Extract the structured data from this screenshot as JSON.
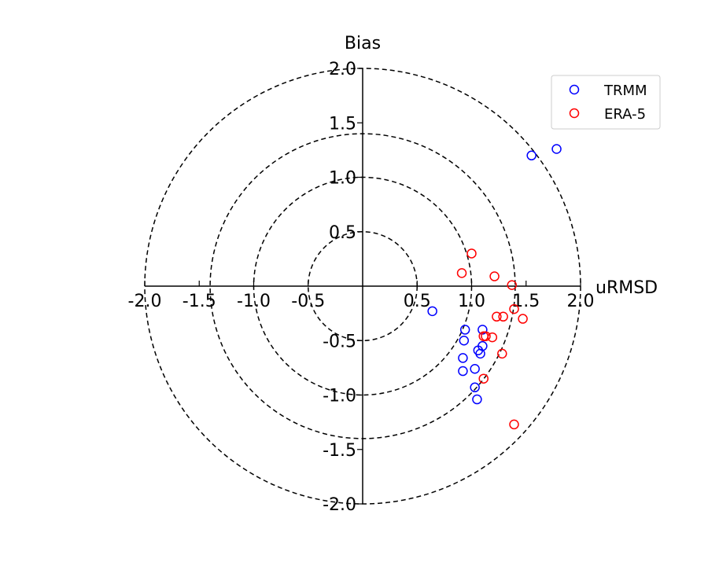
{
  "chart_data": {
    "type": "scatter",
    "subtype": "target-diagram",
    "xlabel": "uRMSD",
    "ylabel": "Bias",
    "xlim": [
      -2.0,
      2.0
    ],
    "ylim": [
      -2.0,
      2.0
    ],
    "x_ticks": [
      "-2.0",
      "-1.5",
      "-1.0",
      "-0.5",
      "0.5",
      "1.0",
      "1.5",
      "2.0"
    ],
    "y_ticks": [
      "2.0",
      "1.5",
      "1.0",
      "0.5",
      "-0.5",
      "-1.0",
      "-1.5",
      "-2.0"
    ],
    "circle_radii": [
      0.5,
      1.0,
      1.4,
      2.0
    ],
    "legend_position": "top-right",
    "series": [
      {
        "name": "TRMM",
        "color": "#0000ff",
        "marker": "open-circle",
        "points": [
          [
            1.55,
            1.2
          ],
          [
            1.78,
            1.26
          ],
          [
            0.64,
            -0.23
          ],
          [
            0.94,
            -0.4
          ],
          [
            0.93,
            -0.5
          ],
          [
            1.1,
            -0.4
          ],
          [
            1.1,
            -0.55
          ],
          [
            1.06,
            -0.59
          ],
          [
            1.08,
            -0.62
          ],
          [
            0.92,
            -0.66
          ],
          [
            0.92,
            -0.78
          ],
          [
            1.03,
            -0.76
          ],
          [
            1.03,
            -0.93
          ],
          [
            1.05,
            -1.04
          ]
        ]
      },
      {
        "name": "ERA-5",
        "color": "#ff0000",
        "marker": "open-circle",
        "points": [
          [
            1.0,
            0.3
          ],
          [
            0.91,
            0.12
          ],
          [
            1.21,
            0.09
          ],
          [
            1.37,
            0.01
          ],
          [
            1.39,
            -0.21
          ],
          [
            1.47,
            -0.3
          ],
          [
            1.23,
            -0.28
          ],
          [
            1.29,
            -0.28
          ],
          [
            1.11,
            -0.46
          ],
          [
            1.13,
            -0.46
          ],
          [
            1.19,
            -0.47
          ],
          [
            1.28,
            -0.62
          ],
          [
            1.11,
            -0.85
          ],
          [
            1.39,
            -1.27
          ]
        ]
      }
    ]
  }
}
